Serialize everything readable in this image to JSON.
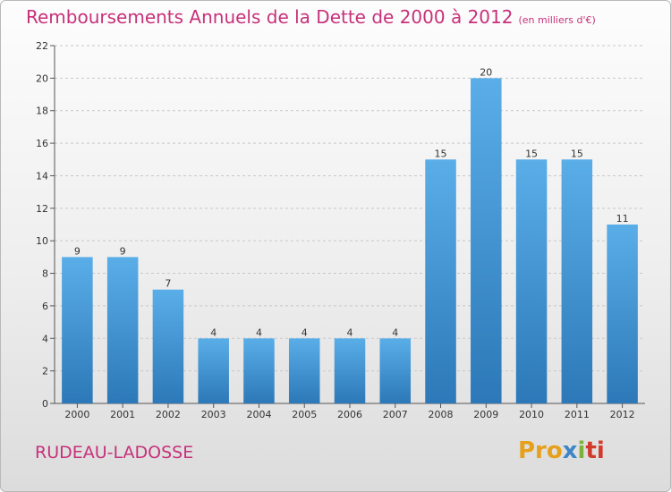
{
  "header": {
    "title": "Remboursements Annuels de la Dette de 2000 à 2012",
    "unit": "(en milliers d'€)"
  },
  "footer": {
    "commune": "RUDEAU-LADOSSE",
    "logo_parts": [
      "Pro",
      "x",
      "i",
      "ti"
    ]
  },
  "colors": {
    "title": "#c7317a",
    "bar_top": "#5aaee8",
    "bar_bottom": "#2c78b8",
    "grid": "#c8c8c8"
  },
  "chart_data": {
    "type": "bar",
    "title": "Remboursements Annuels de la Dette de 2000 à 2012",
    "subtitle": "(en milliers d'€)",
    "xlabel": "",
    "ylabel": "",
    "categories": [
      "2000",
      "2001",
      "2002",
      "2003",
      "2004",
      "2005",
      "2006",
      "2007",
      "2008",
      "2009",
      "2010",
      "2011",
      "2012"
    ],
    "values": [
      9,
      9,
      7,
      4,
      4,
      4,
      4,
      4,
      15,
      20,
      15,
      15,
      11
    ],
    "ylim": [
      0,
      22
    ],
    "yticks": [
      0,
      2,
      4,
      6,
      8,
      10,
      12,
      14,
      16,
      18,
      20,
      22
    ],
    "grid": true,
    "data_labels": true
  }
}
